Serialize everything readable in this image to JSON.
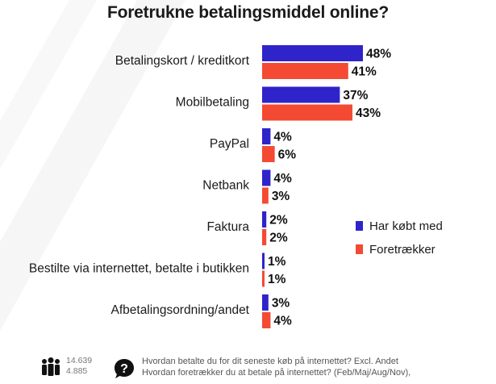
{
  "chart_data": {
    "type": "bar",
    "orientation": "horizontal",
    "title": "Foretrukne betalingsmiddel online?",
    "categories": [
      "Betalingskort / kreditkort",
      "Mobilbetaling",
      "PayPal",
      "Netbank",
      "Faktura",
      "Bestilte via internettet, betalte i butikken",
      "Afbetalingsordning/andet"
    ],
    "series": [
      {
        "name": "Har købt med",
        "color": "#2f24c9",
        "values": [
          48,
          37,
          4,
          4,
          2,
          1,
          3
        ]
      },
      {
        "name": "Foretrækker",
        "color": "#f44a33",
        "values": [
          41,
          43,
          6,
          3,
          2,
          1,
          4
        ]
      }
    ],
    "value_suffix": "%",
    "legend_position": "right",
    "grid": false,
    "xlim": [
      0,
      48
    ]
  },
  "footer": {
    "count_bought": "14.639",
    "count_prefer": "4.885",
    "question_1": "Hvordan betalte du for dit seneste køb på internettet? Excl. Andet",
    "question_2": "Hvordan foretrækker du at betale på internettet? (Feb/Maj/Aug/Nov),",
    "people_icon": "people-icon",
    "question_icon": "question-bubble-icon"
  }
}
